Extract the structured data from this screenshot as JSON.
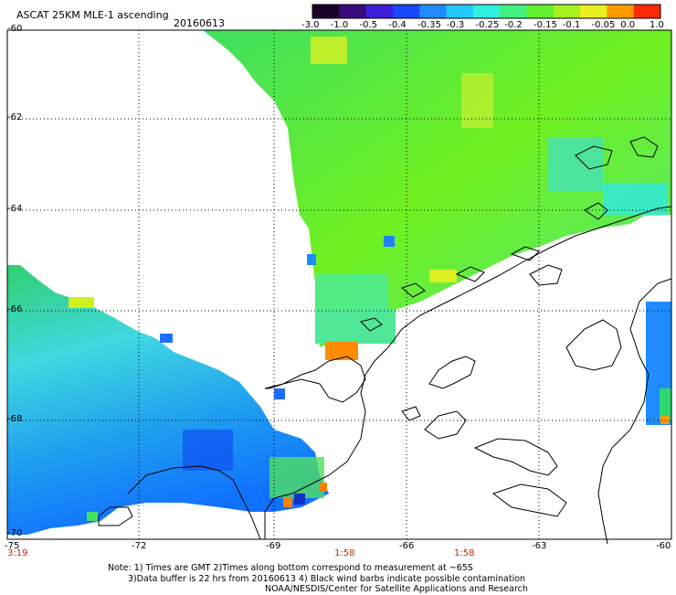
{
  "header": {
    "title": "ASCAT 25KM MLE-1 ascending",
    "date": "20160613"
  },
  "colorbar": {
    "labels": [
      "-3.0",
      "-1.0",
      "-0.5",
      "-0.4",
      "-0.35",
      "-0.3",
      "-0.25",
      "-0.2",
      "-0.15",
      "-0.1",
      "-0.05",
      "0.0",
      "1.0"
    ],
    "colors": [
      "#1a0026",
      "#3a0a7a",
      "#3c1ed8",
      "#1848ff",
      "#1e8cff",
      "#20c8ff",
      "#30f0e0",
      "#40f080",
      "#60f030",
      "#a8f020",
      "#e8f020",
      "#ff9a00",
      "#ff2800"
    ]
  },
  "axes": {
    "lat_labels": [
      "-60",
      "-62",
      "-64",
      "-66",
      "-68",
      "-70"
    ],
    "lon_labels": [
      "-75",
      "-72",
      "-69",
      "-66",
      "-63",
      "-60"
    ]
  },
  "times": [
    "3:19",
    "1:58",
    "1:58"
  ],
  "notes": {
    "line1": "Note: 1) Times are GMT 2)Times along bottom correspond to measurement at ~65S",
    "line2": "3)Data buffer is 22 hrs from 20160613 4) Black wind barbs indicate possible contamination",
    "line3": "NOAA/NESDIS/Center for Satellite Applications and Research"
  }
}
